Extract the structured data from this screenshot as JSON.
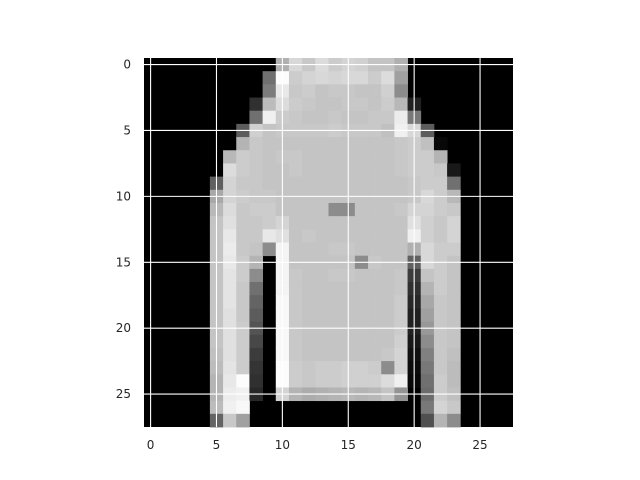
{
  "chart_data": {
    "type": "heatmap",
    "colormap": "gray",
    "grid": true,
    "grid_color": "#ffffff",
    "background_color": "#000000",
    "xlim": [
      -0.5,
      27.5
    ],
    "ylim": [
      27.5,
      -0.5
    ],
    "x_ticks": [
      0,
      5,
      10,
      15,
      20,
      25
    ],
    "y_ticks": [
      0,
      5,
      10,
      15,
      20,
      25
    ],
    "x_tick_labels": [
      "0",
      "5",
      "10",
      "15",
      "20",
      "25"
    ],
    "y_tick_labels": [
      "0",
      "5",
      "10",
      "15",
      "20",
      "25"
    ],
    "value_range": [
      0,
      255
    ],
    "rows": 28,
    "cols": 28,
    "pixels": [
      [
        0,
        0,
        0,
        0,
        0,
        0,
        0,
        0,
        0,
        0,
        176,
        216,
        200,
        220,
        204,
        212,
        208,
        196,
        196,
        176,
        0,
        0,
        0,
        0,
        0,
        0,
        0,
        0
      ],
      [
        0,
        0,
        0,
        0,
        0,
        0,
        0,
        0,
        0,
        112,
        252,
        204,
        212,
        216,
        212,
        216,
        216,
        204,
        220,
        160,
        0,
        0,
        0,
        0,
        0,
        0,
        0,
        0
      ],
      [
        0,
        0,
        0,
        0,
        0,
        0,
        0,
        0,
        0,
        124,
        232,
        200,
        204,
        196,
        200,
        200,
        196,
        196,
        208,
        140,
        0,
        0,
        0,
        0,
        0,
        0,
        0,
        0
      ],
      [
        0,
        0,
        0,
        0,
        0,
        0,
        0,
        0,
        48,
        188,
        220,
        204,
        200,
        196,
        196,
        200,
        200,
        196,
        204,
        184,
        32,
        0,
        0,
        0,
        0,
        0,
        0,
        0
      ],
      [
        0,
        0,
        0,
        0,
        0,
        0,
        0,
        0,
        112,
        240,
        204,
        200,
        196,
        196,
        200,
        196,
        196,
        200,
        200,
        236,
        120,
        0,
        0,
        0,
        0,
        0,
        0,
        0
      ],
      [
        0,
        0,
        0,
        0,
        0,
        0,
        0,
        92,
        208,
        196,
        200,
        200,
        200,
        200,
        204,
        200,
        200,
        200,
        192,
        240,
        216,
        92,
        0,
        0,
        0,
        0,
        0,
        0
      ],
      [
        0,
        0,
        0,
        0,
        0,
        0,
        0,
        180,
        200,
        196,
        196,
        196,
        196,
        196,
        196,
        196,
        196,
        196,
        196,
        200,
        204,
        192,
        8,
        0,
        0,
        0,
        0,
        0
      ],
      [
        0,
        0,
        0,
        0,
        0,
        0,
        184,
        204,
        200,
        196,
        200,
        200,
        196,
        196,
        196,
        196,
        196,
        196,
        196,
        200,
        204,
        204,
        180,
        0,
        0,
        0,
        0,
        0
      ],
      [
        0,
        0,
        0,
        0,
        0,
        0,
        220,
        204,
        200,
        196,
        196,
        200,
        196,
        196,
        196,
        196,
        196,
        196,
        196,
        200,
        204,
        204,
        200,
        24,
        0,
        0,
        0,
        0
      ],
      [
        0,
        0,
        0,
        0,
        0,
        96,
        212,
        200,
        200,
        196,
        196,
        196,
        196,
        196,
        196,
        196,
        196,
        196,
        196,
        196,
        200,
        204,
        204,
        112,
        0,
        0,
        0,
        0
      ],
      [
        0,
        0,
        0,
        0,
        0,
        168,
        212,
        204,
        200,
        200,
        196,
        196,
        196,
        196,
        196,
        196,
        196,
        196,
        196,
        196,
        200,
        216,
        204,
        184,
        0,
        0,
        0,
        0
      ],
      [
        0,
        0,
        0,
        0,
        0,
        184,
        220,
        200,
        204,
        204,
        196,
        196,
        196,
        196,
        140,
        140,
        196,
        196,
        196,
        200,
        212,
        212,
        204,
        200,
        0,
        0,
        0,
        0
      ],
      [
        0,
        0,
        0,
        0,
        0,
        196,
        224,
        200,
        200,
        204,
        212,
        196,
        196,
        196,
        196,
        196,
        196,
        196,
        196,
        196,
        224,
        208,
        200,
        212,
        0,
        0,
        0,
        0
      ],
      [
        0,
        0,
        0,
        0,
        0,
        196,
        232,
        200,
        200,
        232,
        224,
        196,
        200,
        196,
        196,
        196,
        196,
        196,
        196,
        196,
        240,
        208,
        200,
        212,
        0,
        0,
        0,
        0
      ],
      [
        0,
        0,
        0,
        0,
        0,
        196,
        236,
        200,
        196,
        140,
        244,
        196,
        196,
        196,
        200,
        200,
        196,
        196,
        196,
        196,
        176,
        216,
        204,
        204,
        0,
        0,
        0,
        0
      ],
      [
        0,
        0,
        0,
        0,
        0,
        196,
        232,
        204,
        180,
        0,
        244,
        196,
        196,
        196,
        196,
        196,
        140,
        200,
        196,
        196,
        96,
        216,
        204,
        196,
        0,
        0,
        0,
        0
      ],
      [
        0,
        0,
        0,
        0,
        0,
        196,
        228,
        204,
        140,
        0,
        244,
        200,
        196,
        196,
        200,
        200,
        196,
        196,
        196,
        200,
        60,
        196,
        204,
        196,
        0,
        0,
        0,
        0
      ],
      [
        0,
        0,
        0,
        0,
        0,
        196,
        228,
        200,
        112,
        0,
        244,
        200,
        196,
        196,
        196,
        196,
        196,
        196,
        196,
        200,
        48,
        180,
        204,
        196,
        0,
        0,
        0,
        0
      ],
      [
        0,
        0,
        0,
        0,
        0,
        196,
        228,
        200,
        100,
        0,
        248,
        200,
        196,
        196,
        196,
        196,
        196,
        196,
        196,
        204,
        40,
        168,
        200,
        196,
        0,
        0,
        0,
        0
      ],
      [
        0,
        0,
        0,
        0,
        0,
        196,
        224,
        200,
        92,
        0,
        248,
        200,
        196,
        196,
        196,
        196,
        196,
        196,
        196,
        204,
        32,
        160,
        200,
        196,
        0,
        0,
        0,
        0
      ],
      [
        0,
        0,
        0,
        0,
        0,
        196,
        224,
        204,
        84,
        0,
        248,
        200,
        196,
        196,
        196,
        196,
        196,
        196,
        196,
        204,
        32,
        152,
        200,
        196,
        0,
        0,
        0,
        0
      ],
      [
        0,
        0,
        0,
        0,
        0,
        196,
        224,
        204,
        72,
        0,
        248,
        200,
        196,
        196,
        196,
        196,
        196,
        196,
        196,
        208,
        24,
        140,
        200,
        196,
        0,
        0,
        0,
        0
      ],
      [
        0,
        0,
        0,
        0,
        0,
        192,
        224,
        204,
        60,
        0,
        248,
        200,
        196,
        196,
        196,
        196,
        196,
        196,
        200,
        212,
        16,
        128,
        200,
        192,
        0,
        0,
        0,
        0
      ],
      [
        0,
        0,
        0,
        0,
        0,
        188,
        228,
        204,
        52,
        0,
        252,
        204,
        200,
        204,
        204,
        208,
        208,
        204,
        140,
        212,
        12,
        120,
        200,
        188,
        0,
        0,
        0,
        0
      ],
      [
        0,
        0,
        0,
        0,
        0,
        180,
        232,
        252,
        48,
        0,
        252,
        204,
        200,
        204,
        204,
        208,
        208,
        208,
        220,
        240,
        8,
        112,
        204,
        188,
        0,
        0,
        0,
        0
      ],
      [
        0,
        0,
        0,
        0,
        0,
        180,
        236,
        240,
        40,
        0,
        212,
        180,
        172,
        176,
        180,
        184,
        180,
        184,
        196,
        148,
        0,
        108,
        204,
        192,
        0,
        0,
        0,
        0
      ],
      [
        0,
        0,
        0,
        0,
        0,
        188,
        240,
        248,
        0,
        0,
        0,
        0,
        0,
        0,
        0,
        0,
        0,
        0,
        0,
        0,
        0,
        120,
        212,
        200,
        0,
        0,
        0,
        0
      ],
      [
        0,
        0,
        0,
        0,
        0,
        100,
        200,
        160,
        0,
        0,
        0,
        0,
        0,
        0,
        0,
        0,
        0,
        0,
        0,
        0,
        0,
        80,
        180,
        140,
        0,
        0,
        0,
        0
      ]
    ]
  }
}
